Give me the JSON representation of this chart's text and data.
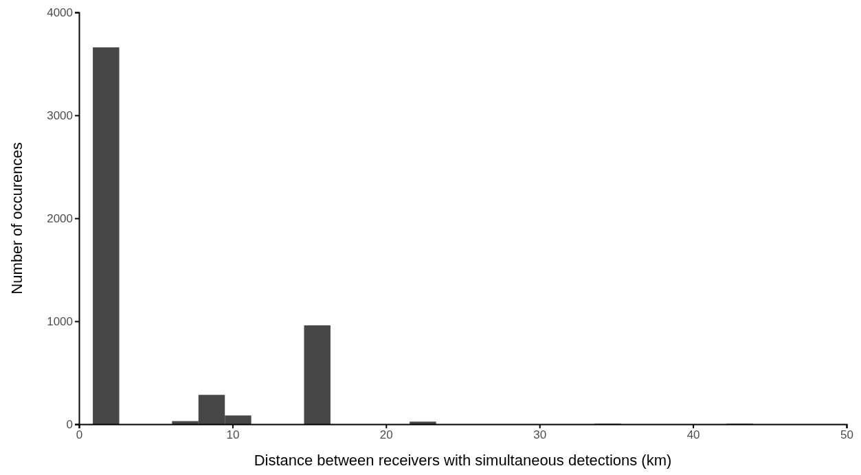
{
  "chart_data": {
    "type": "histogram",
    "xlabel": "Distance between receivers with simultaneous detections (km)",
    "ylabel": "Number of occurences",
    "bins": [
      0.9,
      2.62,
      4.34,
      6.06,
      7.78,
      9.5,
      11.22,
      12.94,
      14.66,
      16.38,
      18.1,
      19.82,
      21.54,
      23.26,
      24.98,
      26.7,
      28.42,
      30.14,
      31.86,
      33.58,
      35.3,
      37.02,
      38.74,
      40.46,
      42.18,
      43.9
    ],
    "values": [
      3660,
      0,
      0,
      30,
      285,
      85,
      0,
      0,
      960,
      0,
      0,
      0,
      25,
      0,
      0,
      0,
      0,
      0,
      0,
      5,
      0,
      0,
      0,
      0,
      5
    ],
    "color": "#474747",
    "xlim": [
      0,
      50
    ],
    "xticks": [
      0,
      10,
      20,
      30,
      40,
      50
    ],
    "ylim": [
      0,
      4000
    ],
    "yticks": [
      0,
      1000,
      2000,
      3000,
      4000
    ],
    "grid": false
  }
}
